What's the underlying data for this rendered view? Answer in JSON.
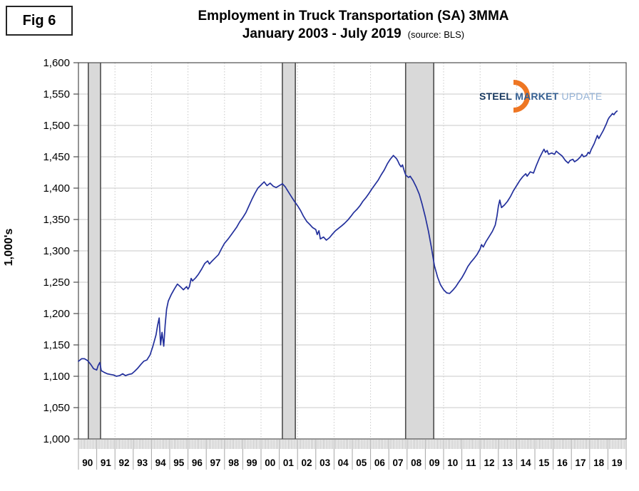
{
  "figure_label": "Fig 6",
  "header": {
    "title": "Employment in Truck Transportation (SA) 3MMA",
    "subtitle": "January 2003 - July 2019",
    "source_note": "(source: BLS)"
  },
  "y_axis_title": "1,000's",
  "logo": {
    "word1": "STEEL",
    "word2": "MARKET",
    "word3": "UPDATE"
  },
  "colors": {
    "line": "#23309C",
    "grid": "#C8C8C8",
    "plot_border": "#4D4D4D",
    "band_fill": "#D9D9D9",
    "band_border": "#4D4D4D",
    "minor_tick": "#ABABAB",
    "year_separator": "#A6A6A6",
    "logo_orange": "#EE7623"
  },
  "chart_data": {
    "type": "line",
    "title": "Employment in Truck Transportation (SA) 3MMA",
    "subtitle": "January 2003 - July 2019 (source: BLS)",
    "ylabel": "1,000's",
    "ylim": [
      1000,
      1600
    ],
    "ytick_step": 50,
    "ytick_labels": [
      "1,600",
      "1,550",
      "1,500",
      "1,450",
      "1,400",
      "1,350",
      "1,300",
      "1,250",
      "1,200",
      "1,150",
      "1,100",
      "1,050",
      "1,000"
    ],
    "x_start": 1990,
    "x_end": 2020,
    "xtick_labels": [
      "90",
      "91",
      "92",
      "93",
      "94",
      "95",
      "96",
      "97",
      "98",
      "99",
      "00",
      "01",
      "02",
      "03",
      "04",
      "05",
      "06",
      "07",
      "08",
      "09",
      "10",
      "11",
      "12",
      "13",
      "14",
      "15",
      "16",
      "17",
      "18",
      "19"
    ],
    "grid": "horizontal solid every 50; vertical dotted every 2 years",
    "legend": "none",
    "recession_bands": [
      [
        1990.54,
        1991.21
      ],
      [
        2001.17,
        2001.88
      ],
      [
        2007.92,
        2009.46
      ]
    ],
    "series_name": "Truck transportation employment, 3-month moving average (thousands)",
    "series": [
      [
        1990.0,
        1124
      ],
      [
        1990.17,
        1128
      ],
      [
        1990.33,
        1128
      ],
      [
        1990.5,
        1125
      ],
      [
        1990.67,
        1119
      ],
      [
        1990.83,
        1112
      ],
      [
        1991.0,
        1110
      ],
      [
        1991.08,
        1117
      ],
      [
        1991.17,
        1122
      ],
      [
        1991.25,
        1109
      ],
      [
        1991.42,
        1106
      ],
      [
        1991.58,
        1104
      ],
      [
        1991.75,
        1103
      ],
      [
        1991.92,
        1102
      ],
      [
        1992.08,
        1100
      ],
      [
        1992.25,
        1101
      ],
      [
        1992.42,
        1104
      ],
      [
        1992.58,
        1101
      ],
      [
        1992.75,
        1103
      ],
      [
        1992.92,
        1104
      ],
      [
        1993.08,
        1108
      ],
      [
        1993.25,
        1113
      ],
      [
        1993.42,
        1119
      ],
      [
        1993.58,
        1124
      ],
      [
        1993.75,
        1126
      ],
      [
        1993.92,
        1134
      ],
      [
        1994.08,
        1148
      ],
      [
        1994.25,
        1166
      ],
      [
        1994.33,
        1180
      ],
      [
        1994.42,
        1193
      ],
      [
        1994.5,
        1150
      ],
      [
        1994.58,
        1170
      ],
      [
        1994.67,
        1148
      ],
      [
        1994.75,
        1182
      ],
      [
        1994.83,
        1207
      ],
      [
        1994.92,
        1220
      ],
      [
        1995.08,
        1230
      ],
      [
        1995.25,
        1239
      ],
      [
        1995.42,
        1247
      ],
      [
        1995.58,
        1243
      ],
      [
        1995.75,
        1238
      ],
      [
        1995.92,
        1243
      ],
      [
        1996.0,
        1239
      ],
      [
        1996.08,
        1243
      ],
      [
        1996.17,
        1256
      ],
      [
        1996.25,
        1252
      ],
      [
        1996.42,
        1257
      ],
      [
        1996.58,
        1263
      ],
      [
        1996.75,
        1271
      ],
      [
        1996.92,
        1280
      ],
      [
        1997.08,
        1284
      ],
      [
        1997.17,
        1279
      ],
      [
        1997.33,
        1284
      ],
      [
        1997.5,
        1289
      ],
      [
        1997.67,
        1294
      ],
      [
        1997.83,
        1303
      ],
      [
        1998.0,
        1312
      ],
      [
        1998.17,
        1318
      ],
      [
        1998.33,
        1324
      ],
      [
        1998.5,
        1331
      ],
      [
        1998.67,
        1338
      ],
      [
        1998.83,
        1346
      ],
      [
        1999.0,
        1353
      ],
      [
        1999.17,
        1361
      ],
      [
        1999.33,
        1371
      ],
      [
        1999.5,
        1382
      ],
      [
        1999.67,
        1392
      ],
      [
        1999.83,
        1400
      ],
      [
        2000.0,
        1405
      ],
      [
        2000.17,
        1410
      ],
      [
        2000.33,
        1404
      ],
      [
        2000.5,
        1408
      ],
      [
        2000.67,
        1403
      ],
      [
        2000.83,
        1401
      ],
      [
        2001.0,
        1404
      ],
      [
        2001.17,
        1407
      ],
      [
        2001.33,
        1402
      ],
      [
        2001.5,
        1394
      ],
      [
        2001.67,
        1386
      ],
      [
        2001.83,
        1379
      ],
      [
        2002.0,
        1372
      ],
      [
        2002.17,
        1364
      ],
      [
        2002.33,
        1355
      ],
      [
        2002.5,
        1347
      ],
      [
        2002.67,
        1342
      ],
      [
        2002.83,
        1337
      ],
      [
        2003.0,
        1334
      ],
      [
        2003.08,
        1326
      ],
      [
        2003.17,
        1332
      ],
      [
        2003.25,
        1319
      ],
      [
        2003.42,
        1322
      ],
      [
        2003.58,
        1317
      ],
      [
        2003.75,
        1321
      ],
      [
        2003.92,
        1327
      ],
      [
        2004.08,
        1332
      ],
      [
        2004.25,
        1336
      ],
      [
        2004.42,
        1340
      ],
      [
        2004.58,
        1344
      ],
      [
        2004.75,
        1349
      ],
      [
        2004.92,
        1355
      ],
      [
        2005.08,
        1361
      ],
      [
        2005.25,
        1366
      ],
      [
        2005.42,
        1372
      ],
      [
        2005.58,
        1379
      ],
      [
        2005.75,
        1385
      ],
      [
        2005.92,
        1392
      ],
      [
        2006.08,
        1399
      ],
      [
        2006.25,
        1406
      ],
      [
        2006.42,
        1413
      ],
      [
        2006.58,
        1421
      ],
      [
        2006.75,
        1429
      ],
      [
        2006.92,
        1439
      ],
      [
        2007.08,
        1446
      ],
      [
        2007.25,
        1452
      ],
      [
        2007.42,
        1447
      ],
      [
        2007.5,
        1443
      ],
      [
        2007.58,
        1438
      ],
      [
        2007.67,
        1434
      ],
      [
        2007.75,
        1437
      ],
      [
        2007.83,
        1429
      ],
      [
        2007.92,
        1421
      ],
      [
        2008.08,
        1417
      ],
      [
        2008.17,
        1419
      ],
      [
        2008.33,
        1412
      ],
      [
        2008.5,
        1402
      ],
      [
        2008.67,
        1390
      ],
      [
        2008.83,
        1374
      ],
      [
        2009.0,
        1354
      ],
      [
        2009.17,
        1331
      ],
      [
        2009.33,
        1306
      ],
      [
        2009.5,
        1276
      ],
      [
        2009.67,
        1258
      ],
      [
        2009.83,
        1246
      ],
      [
        2010.0,
        1238
      ],
      [
        2010.17,
        1233
      ],
      [
        2010.33,
        1232
      ],
      [
        2010.5,
        1237
      ],
      [
        2010.67,
        1243
      ],
      [
        2010.83,
        1250
      ],
      [
        2011.0,
        1257
      ],
      [
        2011.17,
        1266
      ],
      [
        2011.33,
        1275
      ],
      [
        2011.5,
        1282
      ],
      [
        2011.67,
        1288
      ],
      [
        2011.83,
        1294
      ],
      [
        2012.0,
        1303
      ],
      [
        2012.08,
        1310
      ],
      [
        2012.17,
        1306
      ],
      [
        2012.33,
        1315
      ],
      [
        2012.5,
        1323
      ],
      [
        2012.67,
        1331
      ],
      [
        2012.83,
        1341
      ],
      [
        2012.92,
        1355
      ],
      [
        2013.0,
        1371
      ],
      [
        2013.08,
        1381
      ],
      [
        2013.17,
        1369
      ],
      [
        2013.33,
        1373
      ],
      [
        2013.5,
        1379
      ],
      [
        2013.67,
        1387
      ],
      [
        2013.83,
        1396
      ],
      [
        2014.0,
        1404
      ],
      [
        2014.17,
        1412
      ],
      [
        2014.33,
        1418
      ],
      [
        2014.5,
        1423
      ],
      [
        2014.58,
        1419
      ],
      [
        2014.75,
        1426
      ],
      [
        2014.92,
        1424
      ],
      [
        2015.08,
        1436
      ],
      [
        2015.25,
        1448
      ],
      [
        2015.42,
        1458
      ],
      [
        2015.5,
        1462
      ],
      [
        2015.58,
        1457
      ],
      [
        2015.67,
        1460
      ],
      [
        2015.75,
        1454
      ],
      [
        2015.92,
        1456
      ],
      [
        2016.08,
        1454
      ],
      [
        2016.17,
        1459
      ],
      [
        2016.33,
        1455
      ],
      [
        2016.5,
        1451
      ],
      [
        2016.67,
        1444
      ],
      [
        2016.83,
        1440
      ],
      [
        2016.92,
        1444
      ],
      [
        2017.08,
        1446
      ],
      [
        2017.17,
        1442
      ],
      [
        2017.33,
        1445
      ],
      [
        2017.5,
        1450
      ],
      [
        2017.58,
        1454
      ],
      [
        2017.67,
        1450
      ],
      [
        2017.83,
        1452
      ],
      [
        2017.92,
        1457
      ],
      [
        2018.0,
        1455
      ],
      [
        2018.08,
        1461
      ],
      [
        2018.25,
        1471
      ],
      [
        2018.42,
        1484
      ],
      [
        2018.5,
        1479
      ],
      [
        2018.58,
        1483
      ],
      [
        2018.75,
        1492
      ],
      [
        2018.92,
        1503
      ],
      [
        2019.0,
        1509
      ],
      [
        2019.08,
        1513
      ],
      [
        2019.17,
        1516
      ],
      [
        2019.25,
        1519
      ],
      [
        2019.33,
        1517
      ],
      [
        2019.42,
        1521
      ],
      [
        2019.5,
        1523
      ]
    ]
  }
}
